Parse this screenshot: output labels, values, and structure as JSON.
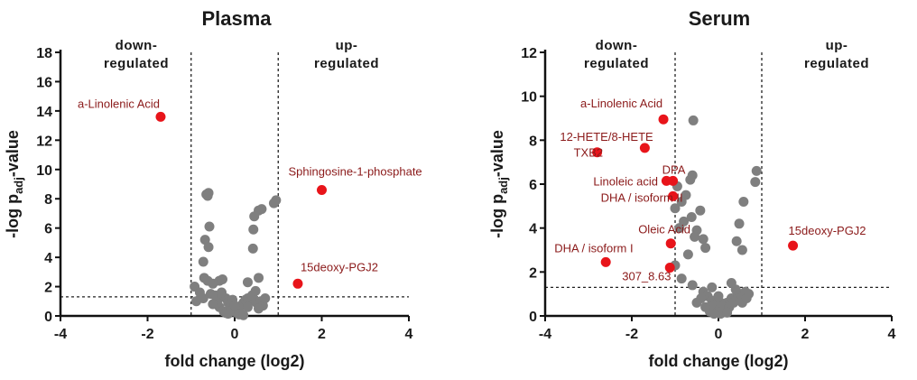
{
  "chart_data": [
    {
      "type": "scatter",
      "title": "Plasma",
      "xlabel": "fold change (log2)",
      "ylabel": "-log p",
      "ylabel_sub": "adj",
      "ylabel_suffix": "-value",
      "xlim": [
        -4,
        4
      ],
      "ylim": [
        0,
        18
      ],
      "xticks": [
        -4,
        -2,
        0,
        2,
        4
      ],
      "yticks": [
        0,
        2,
        4,
        6,
        8,
        10,
        12,
        14,
        16,
        18
      ],
      "vlines": [
        -1,
        1
      ],
      "hline": 1.3,
      "region_left": [
        "down-",
        "regulated"
      ],
      "region_right": [
        "up-",
        "regulated"
      ],
      "colors": {
        "gray": "#7f7f7f",
        "highlight": "#e8141a",
        "label": "#8b1a1a"
      },
      "gray_points": [
        [
          -0.65,
          8.3
        ],
        [
          -0.6,
          8.4
        ],
        [
          -0.62,
          8.2
        ],
        [
          -0.58,
          6.1
        ],
        [
          -0.68,
          5.2
        ],
        [
          -0.6,
          4.7
        ],
        [
          -0.72,
          3.7
        ],
        [
          -0.7,
          2.6
        ],
        [
          -0.62,
          2.4
        ],
        [
          -0.5,
          2.2
        ],
        [
          -0.35,
          2.4
        ],
        [
          -0.28,
          2.5
        ],
        [
          -0.92,
          2.0
        ],
        [
          -0.8,
          1.6
        ],
        [
          -0.55,
          1.5
        ],
        [
          -0.45,
          1.4
        ],
        [
          -0.3,
          1.3
        ],
        [
          -0.2,
          1.2
        ],
        [
          -0.15,
          0.9
        ],
        [
          -0.1,
          0.6
        ],
        [
          -0.05,
          0.4
        ],
        [
          0.0,
          0.3
        ],
        [
          0.05,
          0.2
        ],
        [
          0.1,
          0.4
        ],
        [
          0.15,
          0.7
        ],
        [
          0.2,
          0.9
        ],
        [
          0.25,
          1.1
        ],
        [
          0.3,
          1.2
        ],
        [
          0.35,
          1.0
        ],
        [
          0.45,
          1.1
        ],
        [
          0.5,
          0.9
        ],
        [
          0.6,
          1.0
        ],
        [
          0.65,
          0.7
        ],
        [
          0.55,
          0.5
        ],
        [
          -0.25,
          0.3
        ],
        [
          -0.35,
          0.6
        ],
        [
          -0.4,
          0.9
        ],
        [
          -0.3,
          1.6
        ],
        [
          -0.2,
          0.2
        ],
        [
          0.1,
          0.1
        ],
        [
          0.3,
          0.6
        ],
        [
          0.4,
          1.4
        ],
        [
          -0.5,
          0.8
        ],
        [
          -0.88,
          1.0
        ],
        [
          -0.72,
          1.2
        ],
        [
          0.55,
          7.2
        ],
        [
          0.45,
          6.8
        ],
        [
          0.62,
          7.3
        ],
        [
          0.95,
          7.9
        ],
        [
          0.9,
          7.7
        ],
        [
          0.43,
          5.9
        ],
        [
          0.42,
          4.6
        ],
        [
          0.55,
          2.6
        ],
        [
          0.3,
          2.3
        ],
        [
          0.48,
          1.7
        ],
        [
          0.7,
          1.2
        ],
        [
          -0.05,
          1.1
        ],
        [
          0.0,
          0.7
        ],
        [
          -0.15,
          0.15
        ],
        [
          0.2,
          0.05
        ]
      ],
      "highlights": [
        {
          "x": -1.7,
          "y": 13.6,
          "label": "a-Linolenic Acid"
        },
        {
          "x": 2.0,
          "y": 8.6,
          "label": "Sphingosine-1-phosphate"
        },
        {
          "x": 1.45,
          "y": 2.2,
          "label": "15deoxy-PGJ2"
        }
      ]
    },
    {
      "type": "scatter",
      "title": "Serum",
      "xlabel": "fold change (log2)",
      "ylabel": "-log p",
      "ylabel_sub": "adj",
      "ylabel_suffix": "-value",
      "xlim": [
        -4,
        4
      ],
      "ylim": [
        0,
        12
      ],
      "xticks": [
        -4,
        -2,
        0,
        2,
        4
      ],
      "yticks": [
        0,
        2,
        4,
        6,
        8,
        10,
        12
      ],
      "vlines": [
        -1,
        1
      ],
      "hline": 1.3,
      "region_left": [
        "down-",
        "regulated"
      ],
      "region_right": [
        "up-",
        "regulated"
      ],
      "colors": {
        "gray": "#7f7f7f",
        "highlight": "#e8141a",
        "label": "#8b1a1a"
      },
      "gray_points": [
        [
          -0.58,
          8.9
        ],
        [
          -0.6,
          6.4
        ],
        [
          -0.65,
          6.2
        ],
        [
          -0.95,
          5.9
        ],
        [
          -0.75,
          5.5
        ],
        [
          -0.85,
          5.2
        ],
        [
          -1.0,
          4.9
        ],
        [
          -0.42,
          4.8
        ],
        [
          -0.62,
          4.5
        ],
        [
          -0.8,
          4.3
        ],
        [
          -0.9,
          4.0
        ],
        [
          -0.5,
          3.9
        ],
        [
          -0.55,
          3.6
        ],
        [
          -0.35,
          3.5
        ],
        [
          -0.3,
          3.1
        ],
        [
          -0.7,
          2.8
        ],
        [
          -1.0,
          2.3
        ],
        [
          -0.85,
          1.7
        ],
        [
          -0.6,
          1.4
        ],
        [
          -0.35,
          1.1
        ],
        [
          -0.25,
          0.9
        ],
        [
          -0.15,
          0.7
        ],
        [
          -0.1,
          0.5
        ],
        [
          -0.05,
          0.3
        ],
        [
          0.0,
          0.2
        ],
        [
          0.05,
          0.1
        ],
        [
          0.1,
          0.3
        ],
        [
          0.15,
          0.5
        ],
        [
          0.2,
          0.6
        ],
        [
          0.25,
          0.4
        ],
        [
          0.3,
          0.8
        ],
        [
          0.35,
          0.6
        ],
        [
          0.45,
          0.9
        ],
        [
          0.5,
          1.0
        ],
        [
          0.55,
          0.6
        ],
        [
          0.62,
          1.1
        ],
        [
          0.65,
          0.8
        ],
        [
          -0.2,
          0.2
        ],
        [
          -0.4,
          0.8
        ],
        [
          -0.5,
          0.6
        ],
        [
          -0.3,
          0.4
        ],
        [
          0.05,
          0.6
        ],
        [
          0.4,
          1.2
        ],
        [
          0.3,
          1.5
        ],
        [
          0.48,
          4.2
        ],
        [
          0.42,
          3.4
        ],
        [
          0.55,
          3.0
        ],
        [
          0.58,
          5.2
        ],
        [
          0.85,
          6.1
        ],
        [
          0.88,
          6.6
        ],
        [
          0.7,
          1.0
        ],
        [
          -0.15,
          1.3
        ],
        [
          0.0,
          0.9
        ],
        [
          0.2,
          0.15
        ],
        [
          -0.1,
          0.1
        ]
      ],
      "highlights": [
        {
          "x": -1.27,
          "y": 8.95,
          "label": "a-Linolenic Acid"
        },
        {
          "x": -1.7,
          "y": 7.65,
          "label": "12-HETE/8-HETE"
        },
        {
          "x": -2.8,
          "y": 7.45,
          "label": "TXB2"
        },
        {
          "x": -1.05,
          "y": 6.15,
          "label": "DPA"
        },
        {
          "x": -1.2,
          "y": 6.15,
          "label": "Linoleic acid"
        },
        {
          "x": -1.05,
          "y": 5.45,
          "label": "DHA / isoform II"
        },
        {
          "x": -1.1,
          "y": 3.3,
          "label": "Oleic Acid"
        },
        {
          "x": -2.6,
          "y": 2.45,
          "label": "DHA / isoform I"
        },
        {
          "x": -1.12,
          "y": 2.2,
          "label": "307_8.63"
        },
        {
          "x": 1.72,
          "y": 3.2,
          "label": "15deoxy-PGJ2"
        }
      ]
    }
  ]
}
